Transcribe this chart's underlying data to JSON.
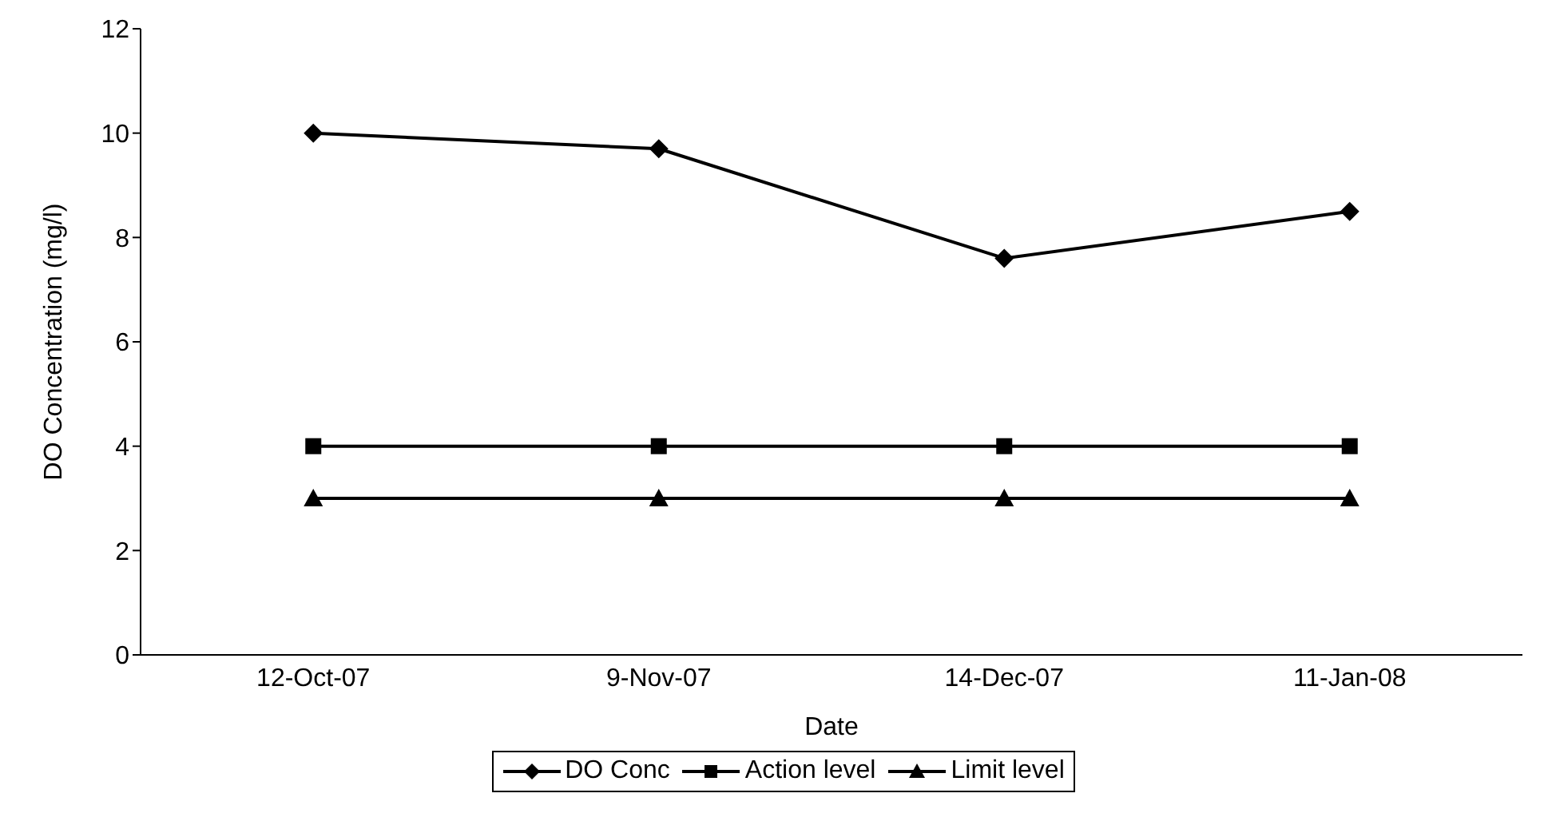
{
  "chart_data": {
    "type": "line",
    "xlabel": "Date",
    "ylabel": "DO Concentration (mg/l)",
    "categories": [
      "12-Oct-07",
      "9-Nov-07",
      "14-Dec-07",
      "11-Jan-08"
    ],
    "series": [
      {
        "name": "DO Conc",
        "color": "#000000",
        "marker": "diamond",
        "values": [
          10,
          9.7,
          7.6,
          8.5
        ]
      },
      {
        "name": "Action level",
        "color": "#000000",
        "marker": "square",
        "values": [
          4,
          4,
          4,
          4
        ]
      },
      {
        "name": "Limit level",
        "color": "#000000",
        "marker": "triangle",
        "values": [
          3,
          3,
          3,
          3
        ]
      }
    ],
    "ylim": [
      0,
      12
    ],
    "yticks": [
      0,
      2,
      4,
      6,
      8,
      10,
      12
    ],
    "grid": false,
    "legend": "bottom",
    "line_style": "solid"
  }
}
